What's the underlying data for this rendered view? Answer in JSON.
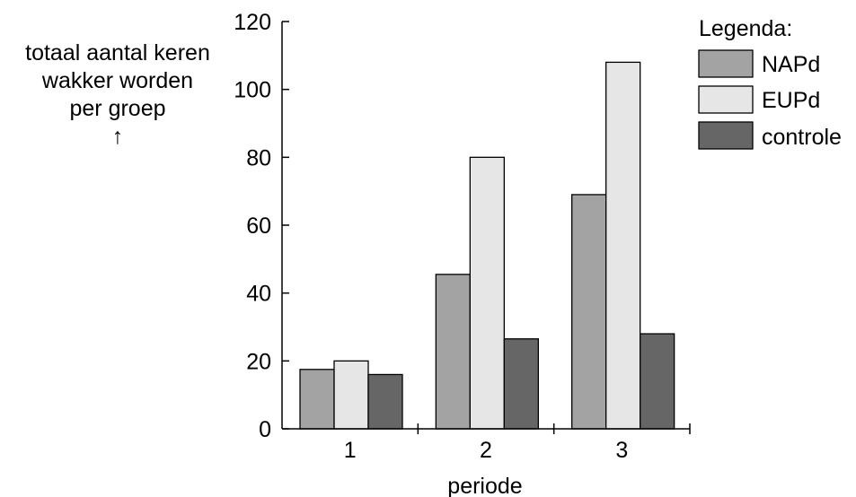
{
  "chart_data": {
    "type": "bar",
    "title": "",
    "xlabel": "periode",
    "ylabel_lines": [
      "totaal aantal keren",
      "wakker worden",
      "per groep"
    ],
    "ylabel_arrow": "↑",
    "categories": [
      "1",
      "2",
      "3"
    ],
    "ylim": [
      0,
      120
    ],
    "yticks": [
      0,
      20,
      40,
      60,
      80,
      100,
      120
    ],
    "grid": false,
    "legend_title": "Legenda:",
    "legend_position": "top-right",
    "series": [
      {
        "name": "NAPd",
        "color": "#a3a3a3",
        "values": [
          17.5,
          45.5,
          69
        ]
      },
      {
        "name": "EUPd",
        "color": "#e6e6e6",
        "values": [
          20,
          80,
          108
        ]
      },
      {
        "name": "controle",
        "color": "#666666",
        "values": [
          16,
          26.5,
          28
        ]
      }
    ]
  }
}
